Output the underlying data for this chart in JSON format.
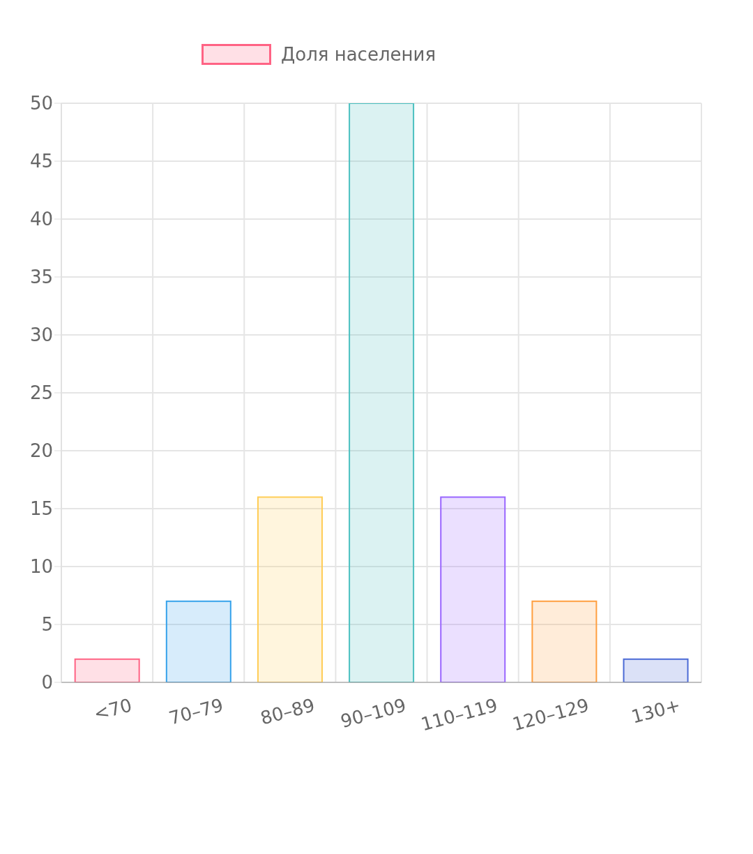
{
  "chart_data": {
    "type": "bar",
    "categories": [
      "<70",
      "70–79",
      "80–89",
      "90–109",
      "110–119",
      "120–129",
      "130+"
    ],
    "series": [
      {
        "name": "Доля населения",
        "color": "#ff6384",
        "colors": [
          "#ff6384",
          "#36a2eb",
          "#ffcd56",
          "#4bc0c0",
          "#9966ff",
          "#ff9f40",
          "#4b6ad6"
        ],
        "values": [
          2,
          7,
          16,
          50,
          16,
          7,
          2
        ]
      }
    ],
    "ylim": [
      0,
      50
    ],
    "yticks": [
      0,
      5,
      10,
      15,
      20,
      25,
      30,
      35,
      40,
      45,
      50
    ],
    "grid": true,
    "legend": "top"
  }
}
